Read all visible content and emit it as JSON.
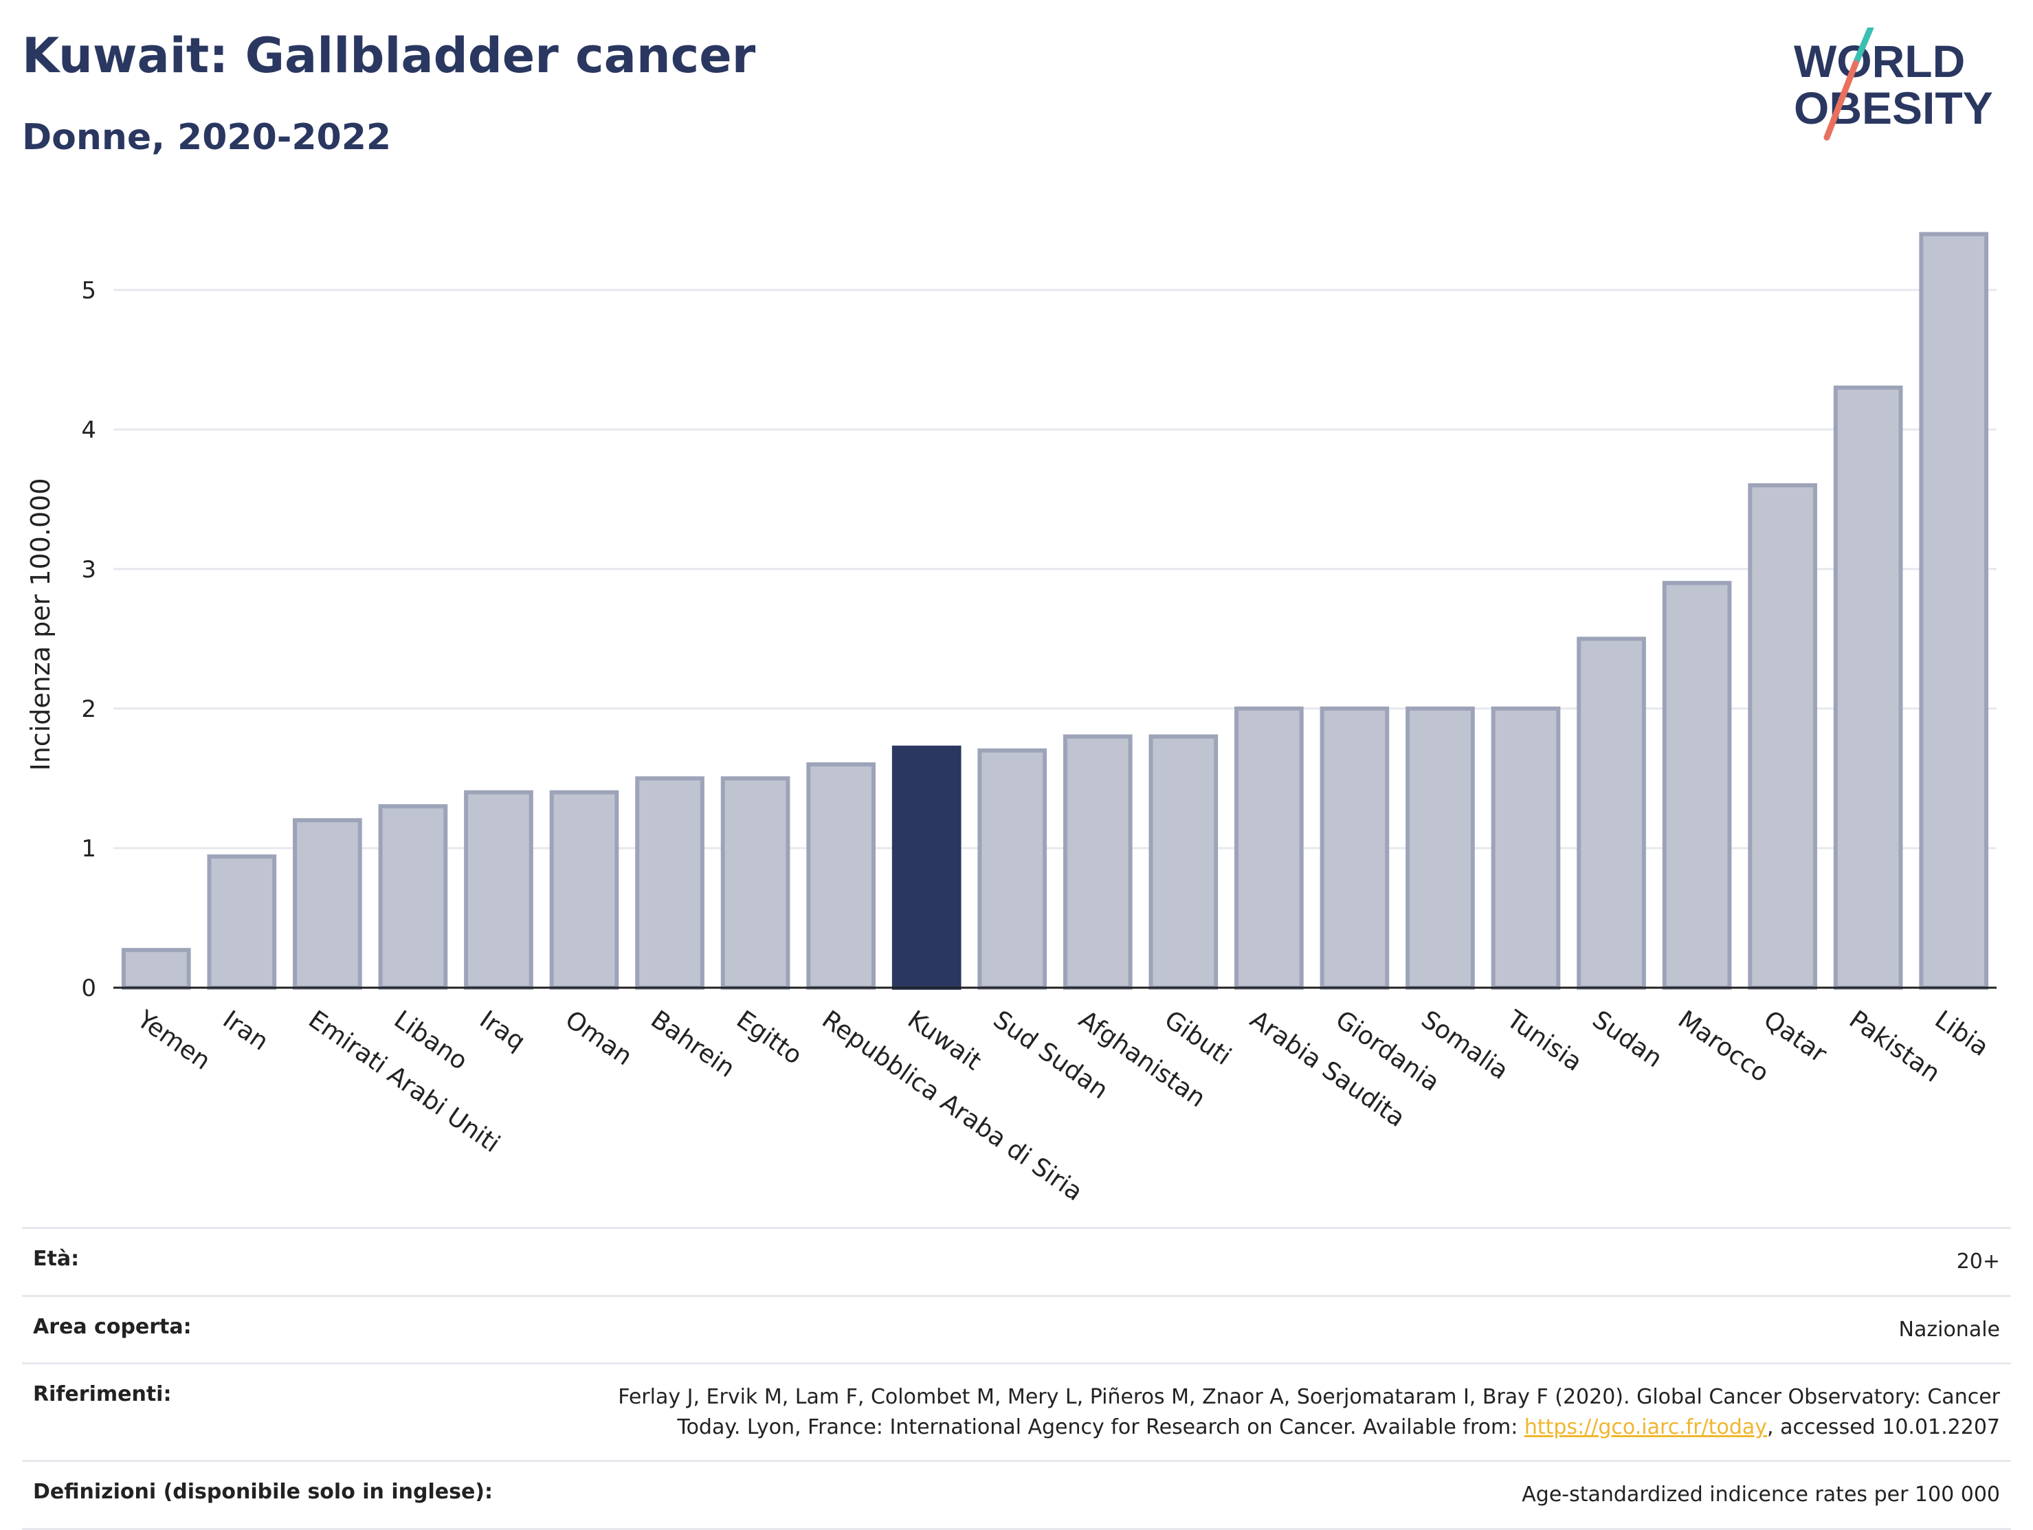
{
  "header": {
    "title": "Kuwait: Gallbladder cancer",
    "subtitle": "Donne, 2020-2022"
  },
  "logo": {
    "line1": "WORLD",
    "line2": "OBESITY"
  },
  "chart_data": {
    "type": "bar",
    "ylabel": "Incidenza per 100.000",
    "xlabel": "",
    "ylim": [
      0,
      5.6
    ],
    "yticks": [
      0,
      1,
      2,
      3,
      4,
      5
    ],
    "grid": true,
    "highlight": "Kuwait",
    "categories": [
      "Yemen",
      "Iran",
      "Emirati Arabi Uniti",
      "Libano",
      "Iraq",
      "Oman",
      "Bahrein",
      "Egitto",
      "Repubblica Araba di Siria",
      "Kuwait",
      "Sud Sudan",
      "Afghanistan",
      "Gibuti",
      "Arabia Saudita",
      "Giordania",
      "Somalia",
      "Tunisia",
      "Sudan",
      "Marocco",
      "Qatar",
      "Pakistan",
      "Libia"
    ],
    "values": [
      0.27,
      0.94,
      1.2,
      1.3,
      1.4,
      1.4,
      1.5,
      1.5,
      1.6,
      1.72,
      1.7,
      1.8,
      1.8,
      2.0,
      2.0,
      2.0,
      2.0,
      2.5,
      2.9,
      3.6,
      4.3,
      5.4
    ],
    "colors": {
      "bar": "#c0c4d1",
      "bar_border": "#9da3b8",
      "highlight": "#2a3760",
      "grid": "#e6e8ee",
      "axis": "#222222"
    }
  },
  "info": {
    "age_label": "Età:",
    "age_value": "20+",
    "area_label": "Area coperta:",
    "area_value": "Nazionale",
    "ref_label": "Riferimenti:",
    "ref_text1": "Ferlay J, Ervik M, Lam F, Colombet M, Mery L, Piñeros M, Znaor A, Soerjomataram I, Bray F (2020). Global Cancer Observatory: Cancer Today. Lyon, France: International Agency for Research on Cancer. Available from: ",
    "ref_link": "https://gco.iarc.fr/today",
    "ref_text2": ", accessed 10.01.2207",
    "def_label": "Definizioni (disponibile solo in inglese):",
    "def_value": "Age-standardized indicence rates per 100 000"
  }
}
